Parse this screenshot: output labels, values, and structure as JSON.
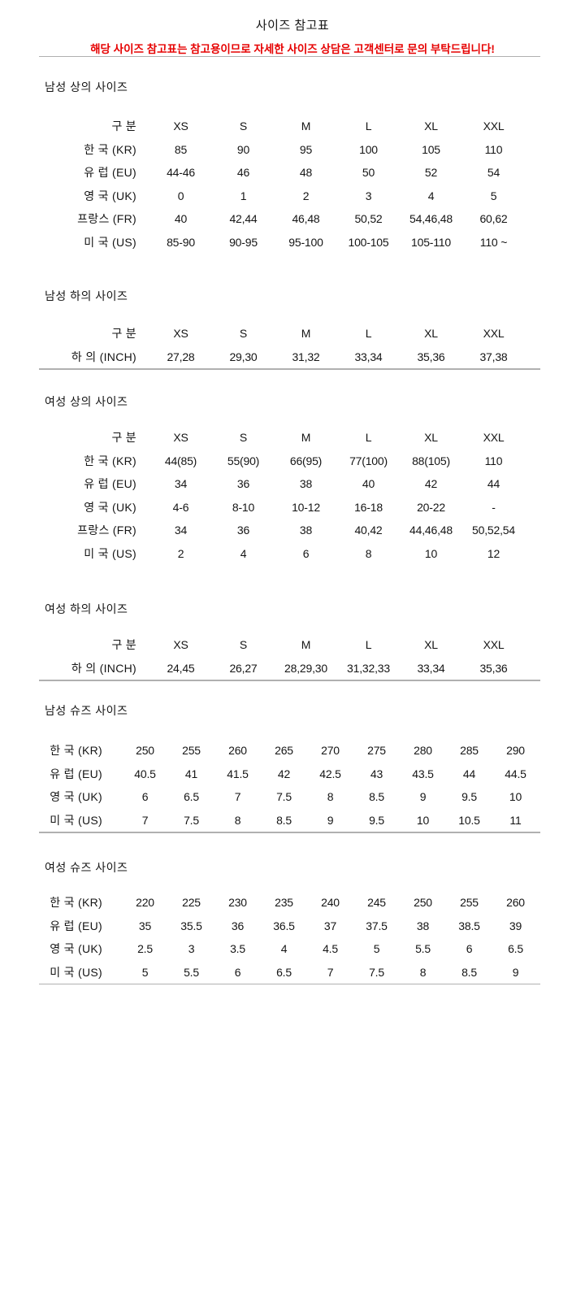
{
  "page": {
    "title": "사이즈 참고표",
    "notice": "해당 사이즈 참고표는 참고용이므로 자세한 사이즈 상담은 고객센터로 문의 부탁드립니다!",
    "notice_color": "#e60000",
    "divider_color": "#b0b0b0",
    "text_color": "#151515"
  },
  "tables": [
    {
      "id": "mens-tops",
      "title": "남성 상의 사이즈",
      "header": [
        "구 분",
        "XS",
        "S",
        "M",
        "L",
        "XL",
        "XXL"
      ],
      "rows": [
        {
          "label": "한 국 (KR)",
          "values": [
            "85",
            "90",
            "95",
            "100",
            "105",
            "110"
          ]
        },
        {
          "label": "유 럽 (EU)",
          "values": [
            "44-46",
            "46",
            "48",
            "50",
            "52",
            "54"
          ]
        },
        {
          "label": "영 국 (UK)",
          "values": [
            "0",
            "1",
            "2",
            "3",
            "4",
            "5"
          ]
        },
        {
          "label": "프랑스 (FR)",
          "values": [
            "40",
            "42,44",
            "46,48",
            "50,52",
            "54,46,48",
            "60,62"
          ]
        },
        {
          "label": "미 국 (US)",
          "values": [
            "85-90",
            "90-95",
            "95-100",
            "100-105",
            "105-110",
            "110 ~"
          ]
        }
      ]
    },
    {
      "id": "mens-bottoms",
      "title": "남성 하의 사이즈",
      "header": [
        "구 분",
        "XS",
        "S",
        "M",
        "L",
        "XL",
        "XXL"
      ],
      "rows": [
        {
          "label": "하 의 (INCH)",
          "values": [
            "27,28",
            "29,30",
            "31,32",
            "33,34",
            "35,36",
            "37,38"
          ]
        }
      ]
    },
    {
      "id": "womens-tops",
      "title": "여성 상의 사이즈",
      "header": [
        "구 분",
        "XS",
        "S",
        "M",
        "L",
        "XL",
        "XXL"
      ],
      "rows": [
        {
          "label": "한 국 (KR)",
          "values": [
            "44(85)",
            "55(90)",
            "66(95)",
            "77(100)",
            "88(105)",
            "110"
          ]
        },
        {
          "label": "유 럽 (EU)",
          "values": [
            "34",
            "36",
            "38",
            "40",
            "42",
            "44"
          ]
        },
        {
          "label": "영 국 (UK)",
          "values": [
            "4-6",
            "8-10",
            "10-12",
            "16-18",
            "20-22",
            "-"
          ]
        },
        {
          "label": "프랑스 (FR)",
          "values": [
            "34",
            "36",
            "38",
            "40,42",
            "44,46,48",
            "50,52,54"
          ]
        },
        {
          "label": "미 국 (US)",
          "values": [
            "2",
            "4",
            "6",
            "8",
            "10",
            "12"
          ]
        }
      ]
    },
    {
      "id": "womens-bottoms",
      "title": "여성 하의 사이즈",
      "header": [
        "구 분",
        "XS",
        "S",
        "M",
        "L",
        "XL",
        "XXL"
      ],
      "rows": [
        {
          "label": "하 의 (INCH)",
          "values": [
            "24,45",
            "26,27",
            "28,29,30",
            "31,32,33",
            "33,34",
            "35,36"
          ]
        }
      ]
    },
    {
      "id": "mens-shoes",
      "title": "남성 슈즈 사이즈",
      "rows": [
        {
          "label": "한 국 (KR)",
          "values": [
            "250",
            "255",
            "260",
            "265",
            "270",
            "275",
            "280",
            "285",
            "290"
          ]
        },
        {
          "label": "유 럽 (EU)",
          "values": [
            "40.5",
            "41",
            "41.5",
            "42",
            "42.5",
            "43",
            "43.5",
            "44",
            "44.5"
          ]
        },
        {
          "label": "영 국 (UK)",
          "values": [
            "6",
            "6.5",
            "7",
            "7.5",
            "8",
            "8.5",
            "9",
            "9.5",
            "10"
          ]
        },
        {
          "label": "미 국 (US)",
          "values": [
            "7",
            "7.5",
            "8",
            "8.5",
            "9",
            "9.5",
            "10",
            "10.5",
            "11"
          ]
        }
      ]
    },
    {
      "id": "womens-shoes",
      "title": "여성 슈즈 사이즈",
      "rows": [
        {
          "label": "한 국 (KR)",
          "values": [
            "220",
            "225",
            "230",
            "235",
            "240",
            "245",
            "250",
            "255",
            "260"
          ]
        },
        {
          "label": "유 럽 (EU)",
          "values": [
            "35",
            "35.5",
            "36",
            "36.5",
            "37",
            "37.5",
            "38",
            "38.5",
            "39"
          ]
        },
        {
          "label": "영 국 (UK)",
          "values": [
            "2.5",
            "3",
            "3.5",
            "4",
            "4.5",
            "5",
            "5.5",
            "6",
            "6.5"
          ]
        },
        {
          "label": "미 국 (US)",
          "values": [
            "5",
            "5.5",
            "6",
            "6.5",
            "7",
            "7.5",
            "8",
            "8.5",
            "9"
          ]
        }
      ]
    }
  ]
}
